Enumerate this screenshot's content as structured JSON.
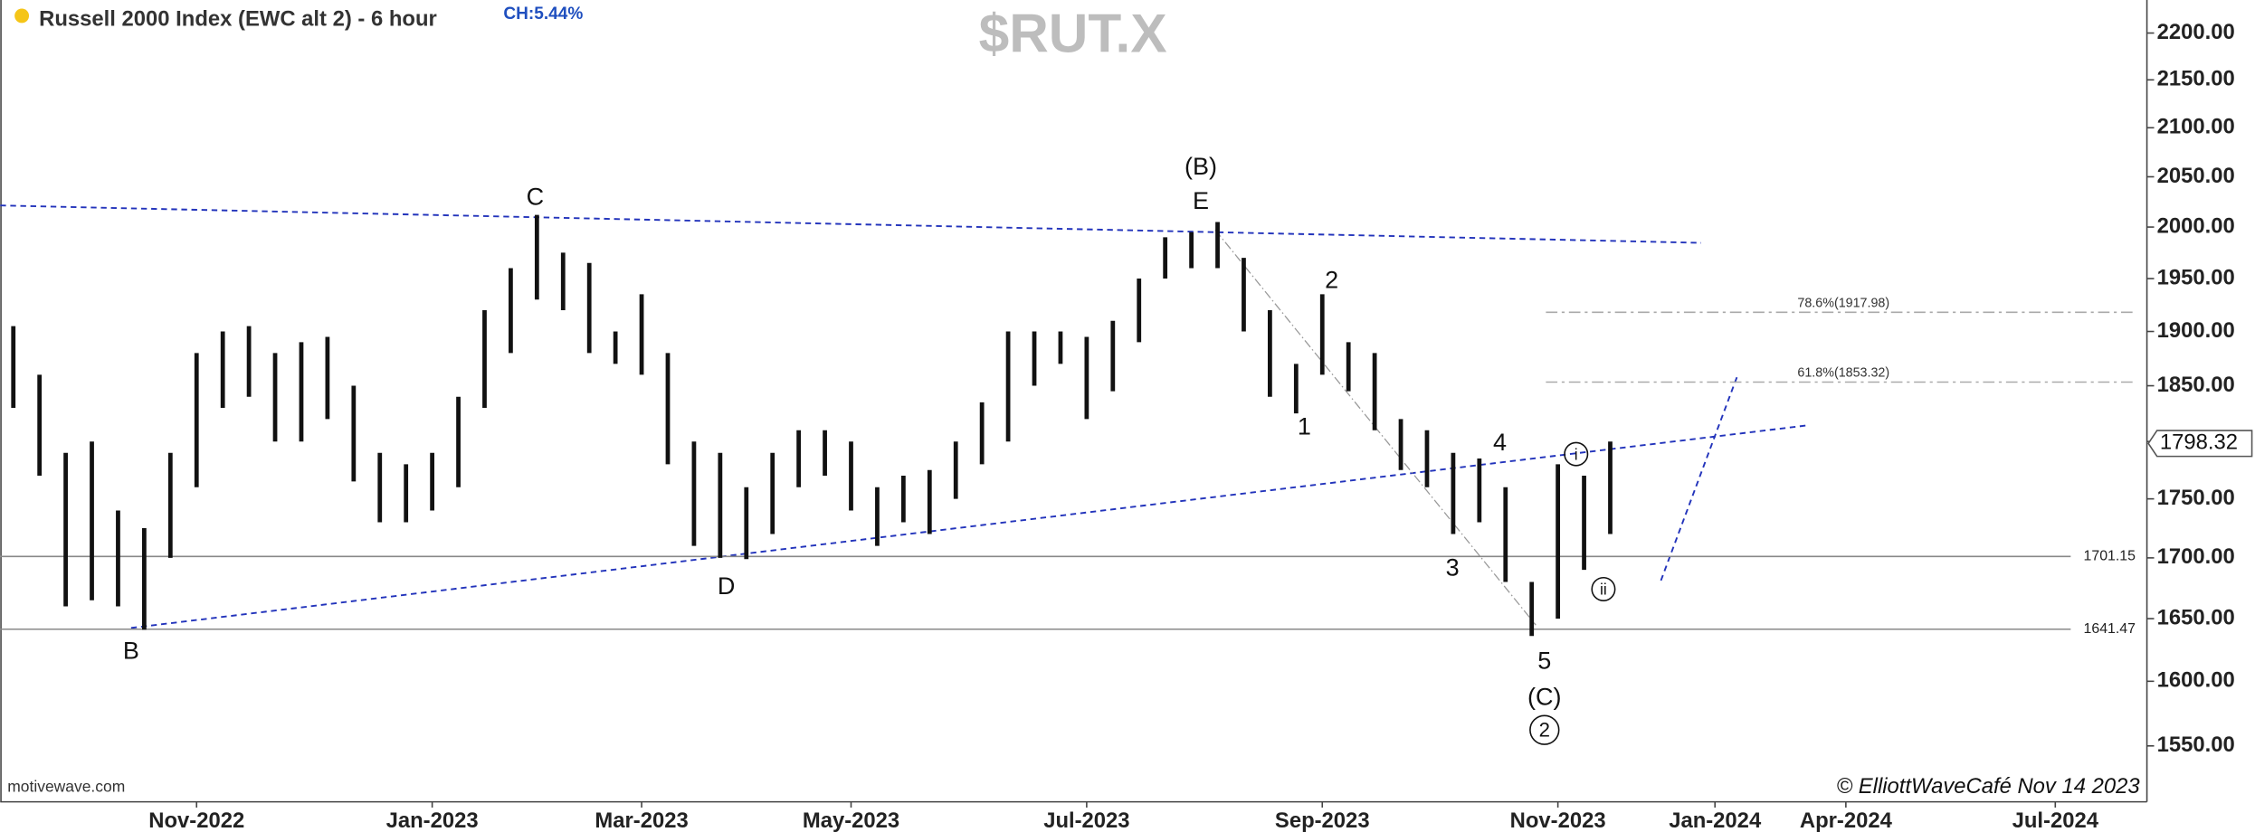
{
  "chart_data": {
    "type": "range",
    "title": "Russell 2000 Index (EWC alt 2) - 6 hour",
    "change": "CH:5.44%",
    "watermark": "$RUT.X",
    "source": "motivewave.com",
    "credit": "© ElliottWaveCafé Nov 14 2023",
    "log": true,
    "color": "#111111",
    "ylim": [
      1508,
      2236
    ],
    "yticks": [
      {
        "value": 1550,
        "label": "1550.00"
      },
      {
        "value": 1600,
        "label": "1600.00"
      },
      {
        "value": 1650,
        "label": "1650.00"
      },
      {
        "value": 1700,
        "label": "1700.00"
      },
      {
        "value": 1750,
        "label": "1750.00"
      },
      {
        "value": 1800,
        "label": "1800.00"
      },
      {
        "value": 1850,
        "label": "1850.00"
      },
      {
        "value": 1900,
        "label": "1900.00"
      },
      {
        "value": 1950,
        "label": "1950.00"
      },
      {
        "value": 2000,
        "label": "2000.00"
      },
      {
        "value": 2050,
        "label": "2050.00"
      },
      {
        "value": 2100,
        "label": "2100.00"
      },
      {
        "value": 2150,
        "label": "2150.00"
      },
      {
        "value": 2200,
        "label": "2200.00"
      }
    ],
    "categories": [
      null,
      null,
      null,
      null,
      null,
      null,
      null,
      "Nov-2022",
      null,
      null,
      null,
      null,
      null,
      null,
      null,
      null,
      "Jan-2023",
      null,
      null,
      null,
      null,
      null,
      null,
      null,
      "Mar-2023",
      null,
      null,
      null,
      null,
      null,
      null,
      null,
      "May-2023",
      null,
      null,
      null,
      null,
      null,
      null,
      null,
      null,
      "Jul-2023",
      null,
      null,
      null,
      null,
      null,
      null,
      null,
      null,
      "Sep-2023",
      null,
      null,
      null,
      null,
      null,
      null,
      null,
      null,
      "Nov-2023",
      null,
      null,
      null,
      null,
      null,
      "Jan-2024",
      null,
      null,
      null,
      null,
      "Apr-2024",
      null,
      null,
      null,
      null,
      null,
      null,
      null,
      "Jul-2024",
      null,
      null,
      null
    ],
    "high": [
      1905,
      1860,
      1790,
      1800,
      1740,
      1725,
      1790,
      1880,
      1900,
      1905,
      1880,
      1890,
      1895,
      1850,
      1790,
      1780,
      1790,
      1840,
      1920,
      1960,
      2012,
      1975,
      1965,
      1900,
      1935,
      1880,
      1800,
      1790,
      1760,
      1790,
      1810,
      1810,
      1800,
      1760,
      1770,
      1775,
      1800,
      1835,
      1900,
      1900,
      1900,
      1895,
      1910,
      1950,
      1990,
      1995,
      2005,
      1970,
      1920,
      1870,
      1935,
      1890,
      1880,
      1820,
      1810,
      1790,
      1785,
      1760,
      1680,
      1780,
      1770,
      1800,
      null,
      null,
      null,
      null,
      null,
      null,
      null,
      null,
      null,
      null,
      null,
      null,
      null,
      null,
      null,
      null,
      null,
      null,
      null,
      null
    ],
    "low": [
      1830,
      1770,
      1660,
      1665,
      1660,
      1641,
      1700,
      1760,
      1830,
      1840,
      1800,
      1800,
      1820,
      1765,
      1730,
      1730,
      1740,
      1760,
      1830,
      1880,
      1930,
      1920,
      1880,
      1870,
      1860,
      1780,
      1710,
      1700,
      1699,
      1720,
      1760,
      1770,
      1740,
      1710,
      1730,
      1720,
      1750,
      1780,
      1800,
      1850,
      1870,
      1820,
      1845,
      1890,
      1950,
      1960,
      1960,
      1900,
      1840,
      1825,
      1860,
      1845,
      1810,
      1775,
      1760,
      1720,
      1730,
      1680,
      1636,
      1650,
      1690,
      1720,
      null,
      null,
      null,
      null,
      null,
      null,
      null,
      null,
      null,
      null,
      null,
      null,
      null,
      null,
      null,
      null,
      null,
      null,
      null,
      null
    ],
    "hlines": [
      1701.15,
      1641.47
    ],
    "fib_levels": [
      {
        "value": 1917.98,
        "label": "78.6%(1917.98)"
      },
      {
        "value": 1853.32,
        "label": "61.8%(1853.32)"
      }
    ],
    "last_price": 1798.32,
    "annotations": [
      "C",
      "(B)",
      "E",
      "2",
      "1",
      "4",
      "3",
      "5",
      "(C)",
      "2",
      "D",
      "B",
      "i",
      "ii"
    ]
  }
}
